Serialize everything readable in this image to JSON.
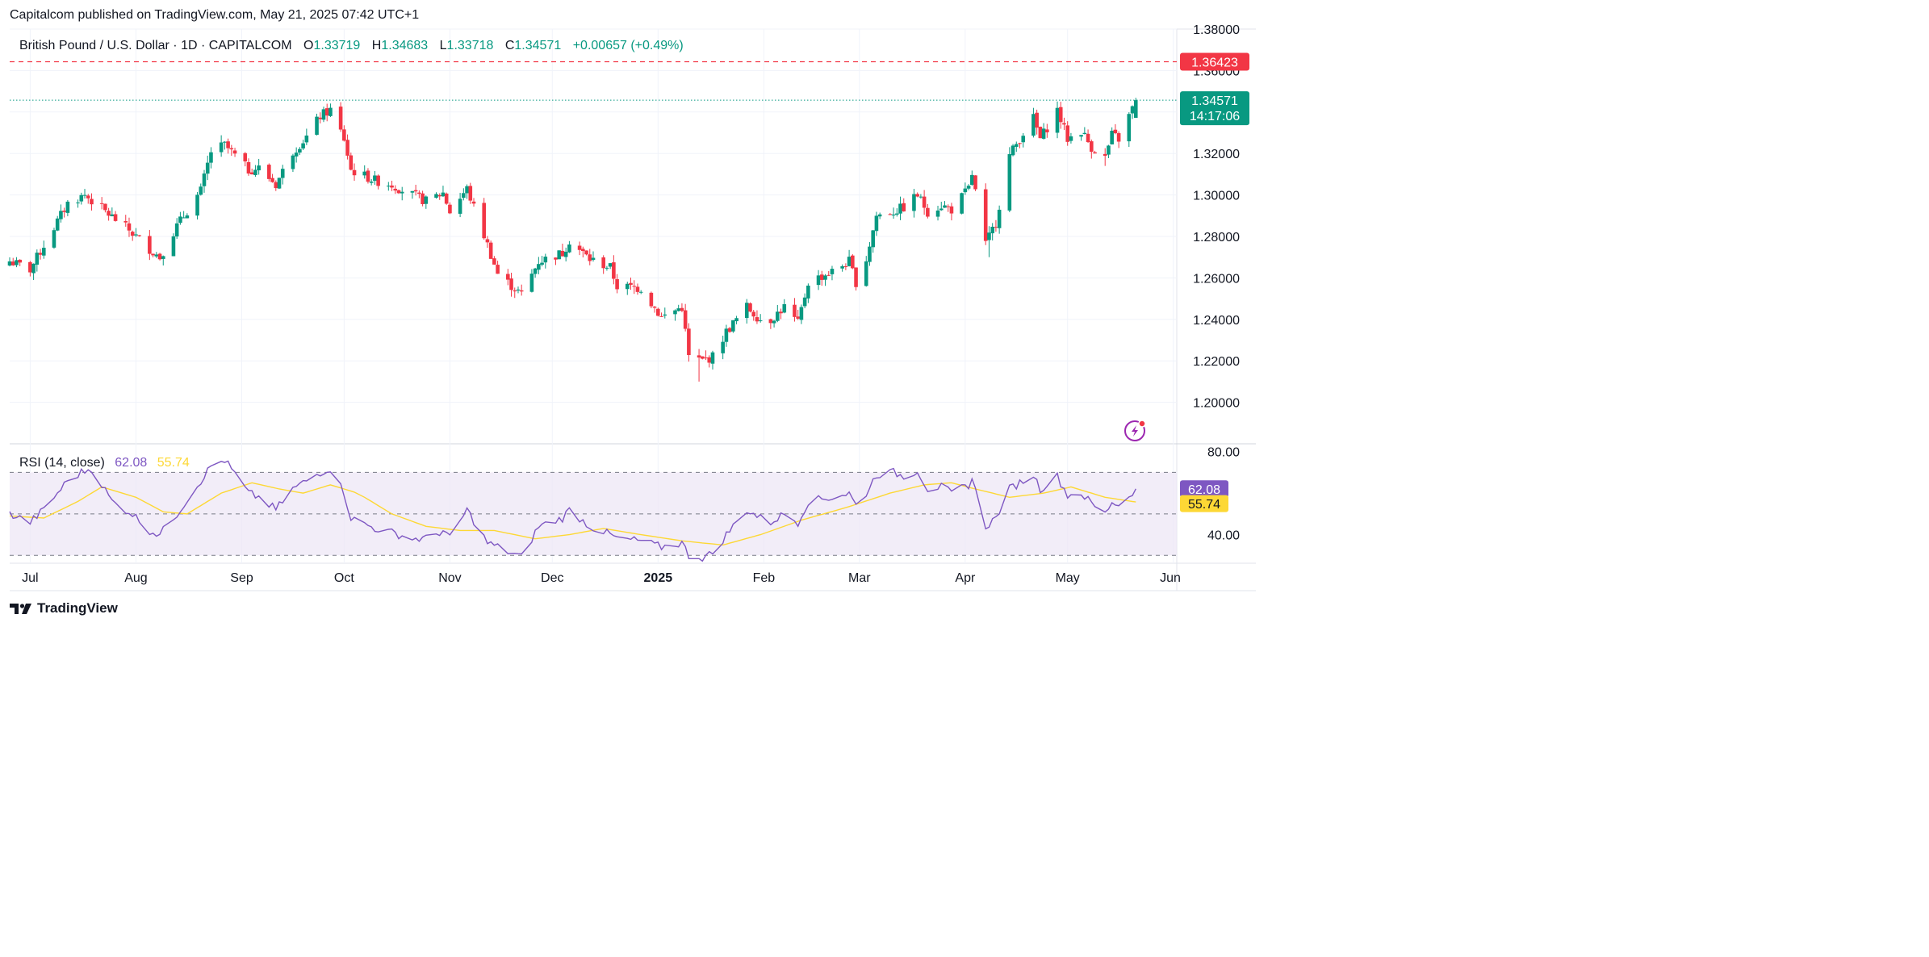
{
  "publisher_line": "Capitalcom published on TradingView.com, May 21, 2025 07:42 UTC+1",
  "brand": "TradingView",
  "colors": {
    "up": "#089981",
    "down": "#f23645",
    "grid": "#f0f3fa",
    "rsi_line": "#7e57c2",
    "rsi_ma": "#fdd835",
    "rsi_band": "#ede7f6",
    "alert_line": "#f23645",
    "text": "#131722"
  },
  "chart_data": [
    {
      "type": "candlestick",
      "title": "British Pound / U.S. Dollar · 1D · CAPITALCOM",
      "ohlc_label": {
        "o_label": "O",
        "o": "1.33719",
        "h_label": "H",
        "h": "1.34683",
        "l_label": "L",
        "l": "1.33718",
        "c_label": "C",
        "c": "1.34571",
        "change": "+0.00657 (+0.49%)"
      },
      "ylim": [
        1.18,
        1.38
      ],
      "y_ticks": [
        "1.38000",
        "1.36000",
        "1.34000",
        "1.32000",
        "1.30000",
        "1.28000",
        "1.26000",
        "1.24000",
        "1.22000",
        "1.20000"
      ],
      "x_ticks": [
        {
          "label": "Jul",
          "date": "2024-07-01",
          "bold": false
        },
        {
          "label": "Aug",
          "date": "2024-08-01",
          "bold": false
        },
        {
          "label": "Sep",
          "date": "2024-09-01",
          "bold": false
        },
        {
          "label": "Oct",
          "date": "2024-10-01",
          "bold": false
        },
        {
          "label": "Nov",
          "date": "2024-11-01",
          "bold": false
        },
        {
          "label": "Dec",
          "date": "2024-12-01",
          "bold": false
        },
        {
          "label": "2025",
          "date": "2025-01-01",
          "bold": true
        },
        {
          "label": "Feb",
          "date": "2025-02-01",
          "bold": false
        },
        {
          "label": "Mar",
          "date": "2025-03-01",
          "bold": false
        },
        {
          "label": "Apr",
          "date": "2025-04-01",
          "bold": false
        },
        {
          "label": "May",
          "date": "2025-05-01",
          "bold": false
        },
        {
          "label": "Jun",
          "date": "2025-06-01",
          "bold": false
        }
      ],
      "x_range": [
        "2024-06-25",
        "2025-06-02"
      ],
      "alert_level": {
        "value": 1.36423,
        "label": "1.36423"
      },
      "last_price": {
        "value": 1.34571,
        "label": "1.34571",
        "countdown": "14:17:06"
      },
      "close_anchors": [
        [
          "2024-06-25",
          1.268
        ],
        [
          "2024-07-01",
          1.264
        ],
        [
          "2024-07-12",
          1.296
        ],
        [
          "2024-07-17",
          1.3
        ],
        [
          "2024-07-23",
          1.292
        ],
        [
          "2024-07-30",
          1.283
        ],
        [
          "2024-08-05",
          1.274
        ],
        [
          "2024-08-08",
          1.27
        ],
        [
          "2024-08-13",
          1.285
        ],
        [
          "2024-08-20",
          1.302
        ],
        [
          "2024-08-23",
          1.321
        ],
        [
          "2024-08-27",
          1.324
        ],
        [
          "2024-09-03",
          1.312
        ],
        [
          "2024-09-06",
          1.313
        ],
        [
          "2024-09-11",
          1.305
        ],
        [
          "2024-09-16",
          1.321
        ],
        [
          "2024-09-20",
          1.328
        ],
        [
          "2024-09-24",
          1.338
        ],
        [
          "2024-09-27",
          1.341
        ],
        [
          "2024-10-01",
          1.327
        ],
        [
          "2024-10-03",
          1.312
        ],
        [
          "2024-10-10",
          1.307
        ],
        [
          "2024-10-15",
          1.305
        ],
        [
          "2024-10-21",
          1.3
        ],
        [
          "2024-10-25",
          1.297
        ],
        [
          "2024-10-30",
          1.301
        ],
        [
          "2024-11-01",
          1.292
        ],
        [
          "2024-11-06",
          1.303
        ],
        [
          "2024-11-12",
          1.276
        ],
        [
          "2024-11-15",
          1.262
        ],
        [
          "2024-11-22",
          1.252
        ],
        [
          "2024-11-27",
          1.268
        ],
        [
          "2024-12-04",
          1.272
        ],
        [
          "2024-12-06",
          1.278
        ],
        [
          "2024-12-12",
          1.269
        ],
        [
          "2024-12-18",
          1.265
        ],
        [
          "2024-12-20",
          1.256
        ],
        [
          "2024-12-27",
          1.255
        ],
        [
          "2025-01-02",
          1.241
        ],
        [
          "2025-01-08",
          1.246
        ],
        [
          "2025-01-10",
          1.222
        ],
        [
          "2025-01-14",
          1.22
        ],
        [
          "2025-01-17",
          1.222
        ],
        [
          "2025-01-21",
          1.234
        ],
        [
          "2025-01-27",
          1.246
        ],
        [
          "2025-01-31",
          1.24
        ],
        [
          "2025-02-03",
          1.24
        ],
        [
          "2025-02-07",
          1.246
        ],
        [
          "2025-02-11",
          1.238
        ],
        [
          "2025-02-14",
          1.258
        ],
        [
          "2025-02-21",
          1.263
        ],
        [
          "2025-02-26",
          1.268
        ],
        [
          "2025-02-28",
          1.258
        ],
        [
          "2025-03-03",
          1.269
        ],
        [
          "2025-03-06",
          1.29
        ],
        [
          "2025-03-11",
          1.292
        ],
        [
          "2025-03-14",
          1.294
        ],
        [
          "2025-03-18",
          1.3
        ],
        [
          "2025-03-21",
          1.292
        ],
        [
          "2025-03-25",
          1.295
        ],
        [
          "2025-03-28",
          1.293
        ],
        [
          "2025-04-02",
          1.303
        ],
        [
          "2025-04-03",
          1.31
        ],
        [
          "2025-04-07",
          1.276
        ],
        [
          "2025-04-10",
          1.287
        ],
        [
          "2025-04-14",
          1.319
        ],
        [
          "2025-04-18",
          1.33
        ],
        [
          "2025-04-21",
          1.337
        ],
        [
          "2025-04-23",
          1.327
        ],
        [
          "2025-04-28",
          1.341
        ],
        [
          "2025-05-01",
          1.327
        ],
        [
          "2025-05-05",
          1.331
        ],
        [
          "2025-05-08",
          1.323
        ],
        [
          "2025-05-12",
          1.318
        ],
        [
          "2025-05-14",
          1.329
        ],
        [
          "2025-05-16",
          1.327
        ],
        [
          "2025-05-19",
          1.338
        ],
        [
          "2025-05-21",
          1.346
        ]
      ],
      "last_candle": {
        "date": "2025-05-21",
        "open": 1.33719,
        "high": 1.34683,
        "low": 1.33718,
        "close": 1.34571
      },
      "extreme_lows": [
        [
          "2024-08-09",
          1.266
        ],
        [
          "2025-01-13",
          1.21
        ],
        [
          "2025-04-08",
          1.27
        ],
        [
          "2025-05-12",
          1.314
        ]
      ],
      "extreme_highs": [
        [
          "2024-09-26",
          1.343
        ],
        [
          "2025-04-21",
          1.342
        ],
        [
          "2025-04-28",
          1.344
        ]
      ]
    },
    {
      "type": "line",
      "title": "RSI (14, close)",
      "series": [
        {
          "name": "RSI",
          "value_label": "62.08",
          "value": 62.08
        },
        {
          "name": "MA",
          "value_label": "55.74",
          "value": 55.74
        }
      ],
      "ylim": [
        27,
        83
      ],
      "y_ticks": [
        "80.00",
        "40.00"
      ],
      "bands": [
        70,
        50,
        30
      ],
      "rsi_anchors": [
        [
          "2024-06-25",
          50
        ],
        [
          "2024-07-01",
          46
        ],
        [
          "2024-07-05",
          52
        ],
        [
          "2024-07-12",
          66
        ],
        [
          "2024-07-16",
          70
        ],
        [
          "2024-07-19",
          72
        ],
        [
          "2024-07-25",
          56
        ],
        [
          "2024-07-31",
          50
        ],
        [
          "2024-08-05",
          42
        ],
        [
          "2024-08-08",
          40
        ],
        [
          "2024-08-13",
          50
        ],
        [
          "2024-08-20",
          66
        ],
        [
          "2024-08-23",
          73
        ],
        [
          "2024-08-27",
          76
        ],
        [
          "2024-09-03",
          60
        ],
        [
          "2024-09-06",
          58
        ],
        [
          "2024-09-11",
          52
        ],
        [
          "2024-09-16",
          62
        ],
        [
          "2024-09-20",
          66
        ],
        [
          "2024-09-24",
          70
        ],
        [
          "2024-09-27",
          72
        ],
        [
          "2024-10-01",
          60
        ],
        [
          "2024-10-03",
          48
        ],
        [
          "2024-10-10",
          43
        ],
        [
          "2024-10-15",
          41
        ],
        [
          "2024-10-21",
          38
        ],
        [
          "2024-10-25",
          38
        ],
        [
          "2024-10-30",
          42
        ],
        [
          "2024-11-01",
          38
        ],
        [
          "2024-11-06",
          52
        ],
        [
          "2024-11-12",
          36
        ],
        [
          "2024-11-15",
          34
        ],
        [
          "2024-11-22",
          29
        ],
        [
          "2024-11-27",
          44
        ],
        [
          "2024-12-04",
          48
        ],
        [
          "2024-12-06",
          52
        ],
        [
          "2024-12-12",
          44
        ],
        [
          "2024-12-18",
          40
        ],
        [
          "2024-12-20",
          38
        ],
        [
          "2024-12-27",
          37
        ],
        [
          "2025-01-02",
          34
        ],
        [
          "2025-01-08",
          36
        ],
        [
          "2025-01-10",
          30
        ],
        [
          "2025-01-14",
          29
        ],
        [
          "2025-01-17",
          31
        ],
        [
          "2025-01-21",
          40
        ],
        [
          "2025-01-27",
          52
        ],
        [
          "2025-01-31",
          48
        ],
        [
          "2025-02-03",
          46
        ],
        [
          "2025-02-07",
          50
        ],
        [
          "2025-02-11",
          46
        ],
        [
          "2025-02-14",
          56
        ],
        [
          "2025-02-21",
          58
        ],
        [
          "2025-02-26",
          60
        ],
        [
          "2025-02-28",
          54
        ],
        [
          "2025-03-03",
          60
        ],
        [
          "2025-03-06",
          69
        ],
        [
          "2025-03-11",
          70
        ],
        [
          "2025-03-14",
          68
        ],
        [
          "2025-03-18",
          71
        ],
        [
          "2025-03-21",
          62
        ],
        [
          "2025-03-25",
          63
        ],
        [
          "2025-03-28",
          60
        ],
        [
          "2025-04-02",
          64
        ],
        [
          "2025-04-03",
          67
        ],
        [
          "2025-04-07",
          44
        ],
        [
          "2025-04-10",
          48
        ],
        [
          "2025-04-14",
          62
        ],
        [
          "2025-04-18",
          66
        ],
        [
          "2025-04-21",
          69
        ],
        [
          "2025-04-23",
          62
        ],
        [
          "2025-04-28",
          68
        ],
        [
          "2025-05-01",
          59
        ],
        [
          "2025-05-05",
          60
        ],
        [
          "2025-05-08",
          55
        ],
        [
          "2025-05-12",
          50
        ],
        [
          "2025-05-14",
          56
        ],
        [
          "2025-05-16",
          54
        ],
        [
          "2025-05-19",
          59
        ],
        [
          "2025-05-21",
          62.08
        ]
      ],
      "ma_anchors": [
        [
          "2024-06-25",
          49
        ],
        [
          "2024-07-05",
          48
        ],
        [
          "2024-07-15",
          56
        ],
        [
          "2024-07-22",
          63
        ],
        [
          "2024-08-01",
          58
        ],
        [
          "2024-08-09",
          51
        ],
        [
          "2024-08-16",
          50
        ],
        [
          "2024-08-26",
          60
        ],
        [
          "2024-09-04",
          65
        ],
        [
          "2024-09-12",
          62
        ],
        [
          "2024-09-19",
          60
        ],
        [
          "2024-09-27",
          64
        ],
        [
          "2024-10-05",
          60
        ],
        [
          "2024-10-15",
          50
        ],
        [
          "2024-10-25",
          44
        ],
        [
          "2024-11-04",
          42
        ],
        [
          "2024-11-14",
          42
        ],
        [
          "2024-11-26",
          38
        ],
        [
          "2024-12-06",
          40
        ],
        [
          "2024-12-16",
          43
        ],
        [
          "2024-12-27",
          40
        ],
        [
          "2025-01-08",
          37
        ],
        [
          "2025-01-20",
          35
        ],
        [
          "2025-01-31",
          40
        ],
        [
          "2025-02-12",
          47
        ],
        [
          "2025-02-25",
          53
        ],
        [
          "2025-03-10",
          60
        ],
        [
          "2025-03-20",
          64
        ],
        [
          "2025-03-28",
          65
        ],
        [
          "2025-04-04",
          62
        ],
        [
          "2025-04-14",
          58
        ],
        [
          "2025-04-24",
          60
        ],
        [
          "2025-05-02",
          63
        ],
        [
          "2025-05-12",
          58
        ],
        [
          "2025-05-21",
          55.74
        ]
      ]
    }
  ]
}
